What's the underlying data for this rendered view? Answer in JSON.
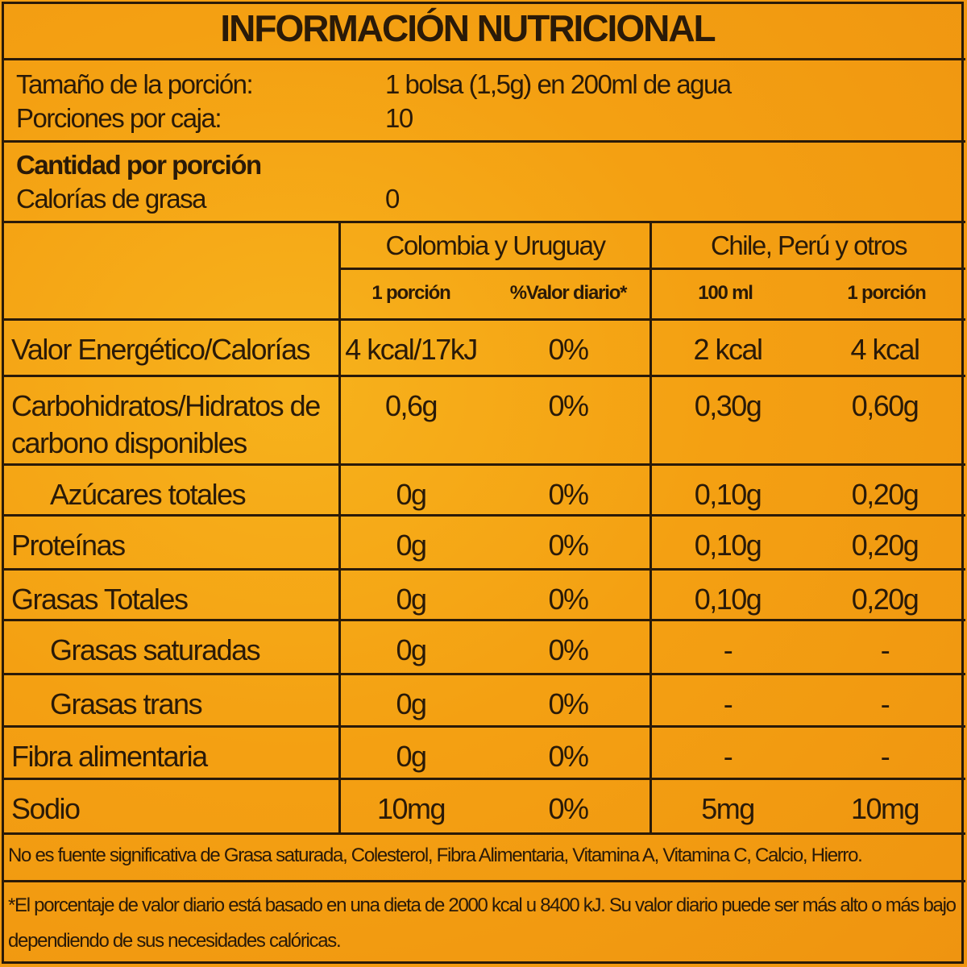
{
  "title": "INFORMACIÓN NUTRICIONAL",
  "serving": {
    "size_label": "Tamaño de la porción:",
    "size_value": "1 bolsa (1,5g) en 200ml de agua",
    "per_box_label": "Porciones por caja:",
    "per_box_value": "10"
  },
  "amount": {
    "heading": "Cantidad por porción",
    "fat_calories_label": "Calorías de grasa",
    "fat_calories_value": "0"
  },
  "columns": {
    "group1": "Colombia y Uruguay",
    "group2": "Chile, Perú y otros",
    "sub": [
      "1 porción",
      "%Valor diario*",
      "100 ml",
      "1 porción"
    ]
  },
  "rows": [
    {
      "label": "Valor Energético/Calorías",
      "values": [
        "4 kcal/17kJ",
        "0%",
        "2 kcal",
        "4 kcal"
      ]
    },
    {
      "label": "Carbohidratos/Hidratos de carbono disponibles",
      "values": [
        "0,6g",
        "0%",
        "0,30g",
        "0,60g"
      ]
    },
    {
      "label": "Azúcares totales",
      "values": [
        "0g",
        "0%",
        "0,10g",
        "0,20g"
      ]
    },
    {
      "label": "Proteínas",
      "values": [
        "0g",
        "0%",
        "0,10g",
        "0,20g"
      ]
    },
    {
      "label": "Grasas Totales",
      "values": [
        "0g",
        "0%",
        "0,10g",
        "0,20g"
      ]
    },
    {
      "label": "Grasas saturadas",
      "values": [
        "0g",
        "0%",
        "-",
        "-"
      ]
    },
    {
      "label": "Grasas trans",
      "values": [
        "0g",
        "0%",
        "-",
        "-"
      ]
    },
    {
      "label": "Fibra alimentaria",
      "values": [
        "0g",
        "0%",
        "-",
        "-"
      ]
    },
    {
      "label": "Sodio",
      "values": [
        "10mg",
        "0%",
        "5mg",
        "10mg"
      ]
    }
  ],
  "footnotes": {
    "not_significant": "No es fuente significativa de Grasa saturada, Colesterol, Fibra Alimentaria, Vitamina A, Vitamina C, Calcio, Hierro.",
    "daily_value": "*El porcentaje de valor diario está basado en una dieta de 2000 kcal u 8400 kJ. Su valor diario puede ser más alto o más bajo dependiendo de sus necesidades calóricas."
  },
  "colors": {
    "background": "#f4a012",
    "ink": "#2a1a08"
  }
}
